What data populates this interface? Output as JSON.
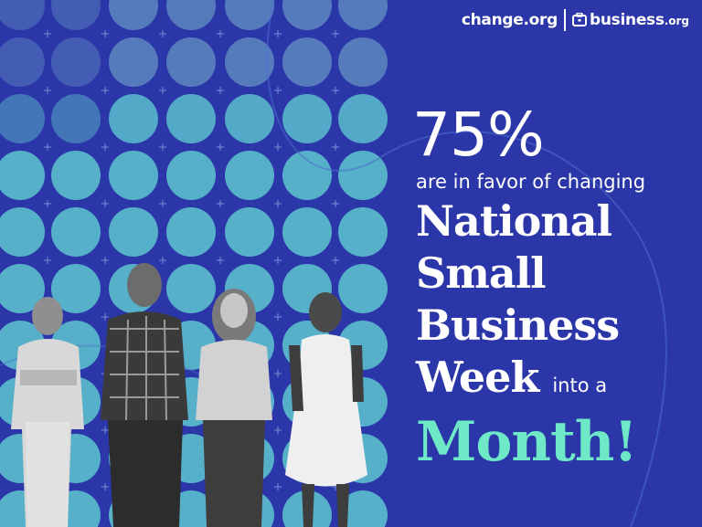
{
  "logos": {
    "primary": "change.org",
    "secondary_main": "business",
    "secondary_tld": ".org",
    "secondary_icon": "briefcase-icon"
  },
  "headline": {
    "stat": "75%",
    "subtitle": "are in favor of changing",
    "line1": "National",
    "line2": "Small",
    "line3": "Business",
    "line4_big": "Week",
    "line4_small": "into a",
    "line5": "Month!"
  },
  "people": [
    {
      "description": "man in light shirt, arms crossed"
    },
    {
      "description": "bearded man in plaid shirt"
    },
    {
      "description": "woman with curly hair, arms crossed"
    },
    {
      "description": "woman in white sleeveless dress"
    }
  ],
  "colors": {
    "background": "#2b36a8",
    "dot": "#5fc6cf",
    "dot_light": "#8ad0d8",
    "accent_green": "#6ee8c7",
    "text": "#ffffff"
  }
}
